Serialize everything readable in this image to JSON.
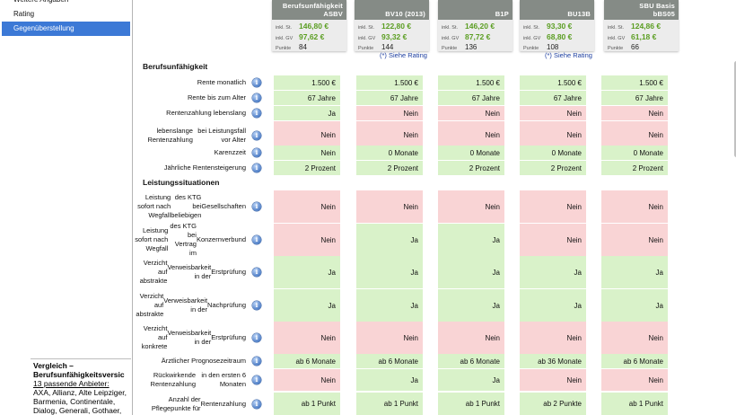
{
  "sidebar": {
    "items": [
      "Weitere Angaben",
      "Rating",
      "Gegenüberstellung"
    ],
    "active_index": 2,
    "summary": {
      "title_1": "Vergleich –",
      "title_2": "Berufsunfähigkeitsversic",
      "link": "13 passende Anbieter:",
      "body_1": "AXA, Allianz, Alte Leipziger,",
      "body_2": "Barmenia, Continentale,",
      "body_3": "Dialog, Generali, Gothaer,"
    }
  },
  "providers": [
    {
      "name_1": "Berufsunfähigkeit",
      "name_2": "ASBV",
      "inkl_st_label": "inkl. St.",
      "inkl_st": "146,80 €",
      "inkl_gv_label": "inkl. GV",
      "inkl_gv": "97,62 €",
      "punkte_label": "Punkte",
      "punkte": "84",
      "rating_link": ""
    },
    {
      "name_1": "",
      "name_2": "BV10 (2013)",
      "inkl_st_label": "inkl. St.",
      "inkl_st": "122,80 €",
      "inkl_gv_label": "inkl. GV",
      "inkl_gv": "93,32 €",
      "punkte_label": "Punkte",
      "punkte": "144",
      "rating_link": "(*) Siehe Rating"
    },
    {
      "name_1": "",
      "name_2": "B1P",
      "inkl_st_label": "inkl. St.",
      "inkl_st": "146,20 €",
      "inkl_gv_label": "inkl. GV",
      "inkl_gv": "87,72 €",
      "punkte_label": "Punkte",
      "punkte": "136",
      "rating_link": ""
    },
    {
      "name_1": "",
      "name_2": "BU13B",
      "inkl_st_label": "inkl. St.",
      "inkl_st": "93,30 €",
      "inkl_gv_label": "inkl. GV",
      "inkl_gv": "68,80 €",
      "punkte_label": "Punkte",
      "punkte": "108",
      "rating_link": "(*) Siehe Rating"
    },
    {
      "name_1": "SBU Basis",
      "name_2": "bBS05",
      "inkl_st_label": "inkl. St.",
      "inkl_st": "124,86 €",
      "inkl_gv_label": "inkl. GV",
      "inkl_gv": "61,18 €",
      "punkte_label": "Punkte",
      "punkte": "66",
      "rating_link": ""
    }
  ],
  "sections": [
    "Berufsunfähigkeit",
    "Leistungssituationen"
  ],
  "info_glyph": "i",
  "rows": [
    {
      "label": [
        "Rente monatlich"
      ],
      "values": [
        "1.500 €",
        "1.500 €",
        "1.500 €",
        "1.500 €",
        "1.500 €"
      ],
      "status": [
        "g",
        "g",
        "g",
        "g",
        "g"
      ]
    },
    {
      "label": [
        "Rente bis zum Alter"
      ],
      "values": [
        "67 Jahre",
        "67 Jahre",
        "67 Jahre",
        "67 Jahre",
        "67 Jahre"
      ],
      "status": [
        "g",
        "g",
        "g",
        "g",
        "g"
      ]
    },
    {
      "label": [
        "Rentenzahlung lebenslang"
      ],
      "values": [
        "Ja",
        "Nein",
        "Nein",
        "Nein",
        "Nein"
      ],
      "status": [
        "g",
        "r",
        "r",
        "r",
        "r"
      ]
    },
    {
      "label": [
        "lebenslange Rentenzahlung",
        "bei Leistungsfall vor Alter"
      ],
      "values": [
        "Nein",
        "Nein",
        "Nein",
        "Nein",
        "Nein"
      ],
      "status": [
        "r",
        "r",
        "r",
        "r",
        "r"
      ]
    },
    {
      "label": [
        "Karenzzeit"
      ],
      "values": [
        "Nein",
        "0 Monate",
        "0 Monate",
        "0 Monate",
        "0 Monate"
      ],
      "status": [
        "g",
        "g",
        "g",
        "g",
        "g"
      ]
    },
    {
      "label": [
        "Jährliche Rentensteigerung"
      ],
      "values": [
        "2 Prozent",
        "2 Prozent",
        "2 Prozent",
        "2 Prozent",
        "2 Prozent"
      ],
      "status": [
        "g",
        "g",
        "g",
        "g",
        "g"
      ]
    },
    {
      "label": [
        "Leistung sofort nach Wegfall",
        "des KTG bei beliebigen",
        "Gesellschaften"
      ],
      "values": [
        "Nein",
        "Nein",
        "Nein",
        "Nein",
        "Nein"
      ],
      "status": [
        "r",
        "r",
        "r",
        "r",
        "r"
      ]
    },
    {
      "label": [
        "Leistung sofort nach Wegfall",
        "des KTG bei Vertrag im",
        "Konzernverbund"
      ],
      "values": [
        "Nein",
        "Ja",
        "Ja",
        "Nein",
        "Nein"
      ],
      "status": [
        "r",
        "g",
        "g",
        "r",
        "r"
      ]
    },
    {
      "label": [
        "Verzicht auf abstrakte",
        "Verweisbarkeit in der",
        "Erstprüfung"
      ],
      "values": [
        "Ja",
        "Ja",
        "Ja",
        "Ja",
        "Ja"
      ],
      "status": [
        "g",
        "g",
        "g",
        "g",
        "g"
      ]
    },
    {
      "label": [
        "Verzicht auf abstrakte",
        "Verweisbarkeit in der",
        "Nachprüfung"
      ],
      "values": [
        "Ja",
        "Ja",
        "Ja",
        "Ja",
        "Ja"
      ],
      "status": [
        "g",
        "g",
        "g",
        "g",
        "g"
      ]
    },
    {
      "label": [
        "Verzicht auf konkrete",
        "Verweisbarkeit in der",
        "Erstprüfung"
      ],
      "values": [
        "Nein",
        "Nein",
        "Nein",
        "Nein",
        "Nein"
      ],
      "status": [
        "r",
        "r",
        "r",
        "r",
        "r"
      ]
    },
    {
      "label": [
        "Ärztlicher Prognosezeitraum"
      ],
      "values": [
        "ab 6 Monate",
        "ab 6 Monate",
        "ab 6 Monate",
        "ab 36 Monate",
        "ab 6 Monate"
      ],
      "status": [
        "g",
        "g",
        "g",
        "g",
        "g"
      ]
    },
    {
      "label": [
        "Rückwirkende Rentenzahlung",
        "in den ersten 6 Monaten"
      ],
      "values": [
        "Nein",
        "Ja",
        "Ja",
        "Nein",
        "Nein"
      ],
      "status": [
        "r",
        "g",
        "g",
        "r",
        "r"
      ]
    },
    {
      "label": [
        "Anzahl der Pflegepunkte für",
        "Rentenzahlung"
      ],
      "values": [
        "ab 1 Punkt",
        "ab 1 Punkt",
        "ab 1 Punkt",
        "ab 2 Punkte",
        "ab 1 Punkt"
      ],
      "status": [
        "g",
        "g",
        "g",
        "g",
        "g"
      ]
    }
  ]
}
